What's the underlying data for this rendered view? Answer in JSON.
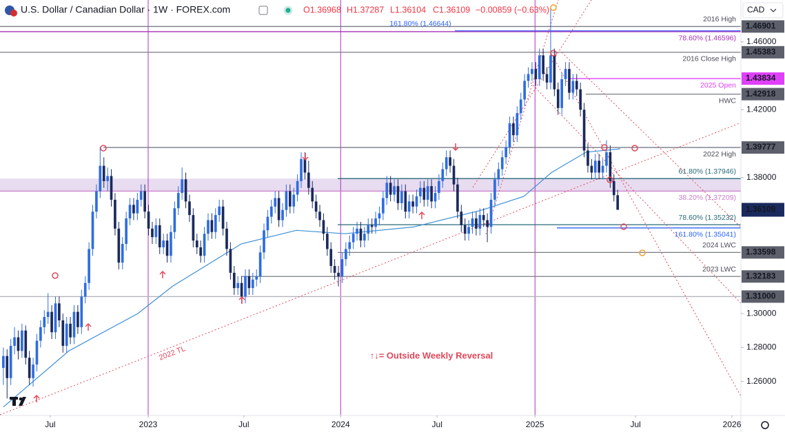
{
  "header": {
    "symbol": "U.S. Dollar / Canadian Dollar · 1W · FOREX.com",
    "open": "O1.36968",
    "high": "H1.37287",
    "low": "L1.36104",
    "close": "C1.36109",
    "change": "−0.00859 (−0.63%)",
    "currency": "CAD"
  },
  "chart_data": {
    "type": "candlestick",
    "open": [
      1.268,
      1.275,
      1.262,
      1.281,
      1.286,
      1.278,
      1.29,
      1.274,
      1.262,
      1.27,
      1.284,
      1.292,
      1.298,
      1.301,
      1.289,
      1.306,
      1.296,
      1.281,
      1.294,
      1.286,
      1.301,
      1.292,
      1.31,
      1.318,
      1.338,
      1.36,
      1.372,
      1.387,
      1.378,
      1.381,
      1.367,
      1.35,
      1.33,
      1.341,
      1.356,
      1.364,
      1.359,
      1.367,
      1.372,
      1.36,
      1.35,
      1.345,
      1.352,
      1.339,
      1.343,
      1.334,
      1.348,
      1.362,
      1.371,
      1.379,
      1.366,
      1.358,
      1.343,
      1.339,
      1.334,
      1.347,
      1.355,
      1.348,
      1.358,
      1.363,
      1.35,
      1.338,
      1.324,
      1.315,
      1.318,
      1.31,
      1.322,
      1.315,
      1.32,
      1.322,
      1.336,
      1.349,
      1.357,
      1.363,
      1.368,
      1.355,
      1.361,
      1.372,
      1.363,
      1.37,
      1.378,
      1.391,
      1.383,
      1.374,
      1.366,
      1.36,
      1.355,
      1.347,
      1.338,
      1.328,
      1.324,
      1.322,
      1.332,
      1.338,
      1.342,
      1.347,
      1.35,
      1.343,
      1.347,
      1.352,
      1.351,
      1.356,
      1.359,
      1.368,
      1.377,
      1.37,
      1.375,
      1.365,
      1.372,
      1.36,
      1.366,
      1.363,
      1.369,
      1.374,
      1.367,
      1.375,
      1.366,
      1.371,
      1.378,
      1.385,
      1.392,
      1.387,
      1.376,
      1.36,
      1.352,
      1.347,
      1.351,
      1.356,
      1.35,
      1.358,
      1.355,
      1.351,
      1.367,
      1.379,
      1.385,
      1.392,
      1.398,
      1.412,
      1.405,
      1.418,
      1.426,
      1.437,
      1.441,
      1.444,
      1.438,
      1.452,
      1.441,
      1.436,
      1.452,
      1.432,
      1.421,
      1.438,
      1.444,
      1.43,
      1.437,
      1.432,
      1.42,
      1.396,
      1.387,
      1.383,
      1.39,
      1.383,
      1.387,
      1.395,
      1.378,
      1.36968
    ],
    "high": [
      1.28,
      1.279,
      1.285,
      1.292,
      1.29,
      1.294,
      1.293,
      1.278,
      1.274,
      1.288,
      1.296,
      1.302,
      1.312,
      1.305,
      1.31,
      1.31,
      1.3,
      1.298,
      1.298,
      1.305,
      1.305,
      1.314,
      1.322,
      1.342,
      1.364,
      1.376,
      1.398,
      1.392,
      1.386,
      1.385,
      1.371,
      1.354,
      1.345,
      1.36,
      1.368,
      1.368,
      1.371,
      1.376,
      1.376,
      1.364,
      1.354,
      1.356,
      1.356,
      1.347,
      1.347,
      1.352,
      1.366,
      1.375,
      1.386,
      1.383,
      1.37,
      1.362,
      1.347,
      1.343,
      1.351,
      1.359,
      1.359,
      1.362,
      1.367,
      1.367,
      1.354,
      1.342,
      1.328,
      1.322,
      1.322,
      1.326,
      1.326,
      1.324,
      1.326,
      1.34,
      1.353,
      1.361,
      1.367,
      1.372,
      1.372,
      1.365,
      1.376,
      1.376,
      1.374,
      1.382,
      1.395,
      1.395,
      1.39,
      1.378,
      1.37,
      1.364,
      1.359,
      1.351,
      1.342,
      1.332,
      1.328,
      1.336,
      1.342,
      1.346,
      1.351,
      1.354,
      1.354,
      1.351,
      1.356,
      1.356,
      1.36,
      1.363,
      1.372,
      1.381,
      1.381,
      1.379,
      1.379,
      1.376,
      1.376,
      1.37,
      1.37,
      1.373,
      1.378,
      1.378,
      1.379,
      1.379,
      1.375,
      1.382,
      1.389,
      1.396,
      1.396,
      1.391,
      1.38,
      1.364,
      1.356,
      1.355,
      1.36,
      1.36,
      1.362,
      1.362,
      1.359,
      1.371,
      1.383,
      1.389,
      1.396,
      1.402,
      1.416,
      1.416,
      1.422,
      1.43,
      1.441,
      1.445,
      1.448,
      1.448,
      1.456,
      1.456,
      1.445,
      1.48,
      1.456,
      1.436,
      1.442,
      1.448,
      1.448,
      1.441,
      1.441,
      1.436,
      1.424,
      1.4,
      1.391,
      1.394,
      1.394,
      1.391,
      1.402,
      1.399,
      1.382,
      1.37287
    ],
    "low": [
      1.258,
      1.25,
      1.258,
      1.276,
      1.273,
      1.274,
      1.27,
      1.258,
      1.257,
      1.266,
      1.28,
      1.288,
      1.294,
      1.285,
      1.285,
      1.292,
      1.277,
      1.277,
      1.282,
      1.282,
      1.288,
      1.288,
      1.306,
      1.314,
      1.334,
      1.356,
      1.368,
      1.374,
      1.372,
      1.363,
      1.346,
      1.326,
      1.326,
      1.337,
      1.352,
      1.355,
      1.355,
      1.363,
      1.356,
      1.346,
      1.341,
      1.341,
      1.335,
      1.335,
      1.33,
      1.33,
      1.344,
      1.358,
      1.367,
      1.362,
      1.354,
      1.339,
      1.335,
      1.33,
      1.33,
      1.343,
      1.344,
      1.344,
      1.354,
      1.346,
      1.334,
      1.32,
      1.311,
      1.311,
      1.306,
      1.306,
      1.311,
      1.311,
      1.316,
      1.318,
      1.332,
      1.345,
      1.353,
      1.359,
      1.351,
      1.351,
      1.357,
      1.359,
      1.359,
      1.366,
      1.374,
      1.379,
      1.37,
      1.362,
      1.356,
      1.351,
      1.343,
      1.334,
      1.324,
      1.32,
      1.316,
      1.318,
      1.328,
      1.334,
      1.338,
      1.343,
      1.339,
      1.339,
      1.343,
      1.347,
      1.347,
      1.352,
      1.355,
      1.364,
      1.366,
      1.366,
      1.361,
      1.361,
      1.356,
      1.356,
      1.359,
      1.359,
      1.365,
      1.363,
      1.363,
      1.362,
      1.362,
      1.367,
      1.374,
      1.381,
      1.383,
      1.372,
      1.356,
      1.348,
      1.343,
      1.343,
      1.347,
      1.346,
      1.346,
      1.351,
      1.342,
      1.347,
      1.363,
      1.375,
      1.381,
      1.388,
      1.394,
      1.401,
      1.401,
      1.414,
      1.422,
      1.433,
      1.437,
      1.434,
      1.434,
      1.437,
      1.432,
      1.432,
      1.428,
      1.417,
      1.417,
      1.434,
      1.426,
      1.426,
      1.428,
      1.416,
      1.392,
      1.383,
      1.379,
      1.379,
      1.379,
      1.379,
      1.383,
      1.374,
      1.366,
      1.36104
    ],
    "close": [
      1.275,
      1.262,
      1.281,
      1.286,
      1.278,
      1.29,
      1.274,
      1.262,
      1.27,
      1.284,
      1.292,
      1.298,
      1.301,
      1.289,
      1.306,
      1.296,
      1.281,
      1.294,
      1.286,
      1.301,
      1.292,
      1.31,
      1.318,
      1.338,
      1.36,
      1.372,
      1.387,
      1.378,
      1.381,
      1.367,
      1.35,
      1.33,
      1.341,
      1.356,
      1.364,
      1.359,
      1.367,
      1.372,
      1.36,
      1.35,
      1.345,
      1.352,
      1.339,
      1.343,
      1.334,
      1.348,
      1.362,
      1.371,
      1.379,
      1.366,
      1.358,
      1.343,
      1.339,
      1.334,
      1.347,
      1.355,
      1.348,
      1.358,
      1.363,
      1.35,
      1.338,
      1.324,
      1.315,
      1.318,
      1.31,
      1.322,
      1.315,
      1.32,
      1.322,
      1.336,
      1.349,
      1.357,
      1.363,
      1.368,
      1.355,
      1.361,
      1.372,
      1.363,
      1.37,
      1.378,
      1.391,
      1.383,
      1.374,
      1.366,
      1.36,
      1.355,
      1.347,
      1.338,
      1.328,
      1.324,
      1.322,
      1.332,
      1.338,
      1.342,
      1.347,
      1.35,
      1.343,
      1.347,
      1.352,
      1.351,
      1.356,
      1.359,
      1.368,
      1.377,
      1.37,
      1.375,
      1.365,
      1.372,
      1.36,
      1.366,
      1.363,
      1.369,
      1.374,
      1.367,
      1.375,
      1.366,
      1.371,
      1.378,
      1.385,
      1.392,
      1.387,
      1.376,
      1.36,
      1.352,
      1.347,
      1.351,
      1.356,
      1.35,
      1.358,
      1.355,
      1.351,
      1.367,
      1.379,
      1.385,
      1.392,
      1.398,
      1.412,
      1.405,
      1.418,
      1.426,
      1.437,
      1.441,
      1.444,
      1.438,
      1.452,
      1.441,
      1.436,
      1.452,
      1.432,
      1.421,
      1.438,
      1.444,
      1.43,
      1.437,
      1.432,
      1.42,
      1.396,
      1.387,
      1.383,
      1.39,
      1.383,
      1.387,
      1.395,
      1.378,
      1.36968,
      1.36109
    ],
    "up_color": "#2e6de0",
    "down_color": "#1b2a5c",
    "ma": {
      "x": [
        0,
        17.6,
        36.1,
        45.4,
        63.9,
        78.7,
        91.7,
        110.2,
        128.7,
        139.8,
        147.2,
        156.5,
        165.7
      ],
      "values": [
        1.245,
        1.278,
        1.3,
        1.316,
        1.341,
        1.349,
        1.347,
        1.351,
        1.361,
        1.369,
        1.383,
        1.395,
        1.397
      ],
      "color": "#3d8fd6"
    },
    "xlim": [
      -0.9,
      198.1
    ],
    "xticks": [
      {
        "value": 12.6,
        "label": "Jul"
      },
      {
        "value": 38.9,
        "label": "2023"
      },
      {
        "value": 64.6,
        "label": "Jul"
      },
      {
        "value": 90.6,
        "label": "2024"
      },
      {
        "value": 116.5,
        "label": "Jul"
      },
      {
        "value": 142.8,
        "label": "2025"
      },
      {
        "value": 169.8,
        "label": "Jul"
      },
      {
        "value": 195.7,
        "label": "2026"
      }
    ],
    "year_line_ticks": [
      1,
      3,
      5
    ],
    "ylim": [
      1.24,
      1.4846
    ],
    "yticks": [
      {
        "value": 1.26,
        "label": "1.26000"
      },
      {
        "value": 1.28,
        "label": "1.28000"
      },
      {
        "value": 1.3,
        "label": "1.30000"
      },
      {
        "value": 1.38,
        "label": "1.38000"
      },
      {
        "value": 1.42,
        "label": "1.42000"
      },
      {
        "value": 1.46,
        "label": "1.46000"
      }
    ],
    "levels": [
      {
        "value": 1.46901,
        "axis_label": "1.46901",
        "text": "2016 High",
        "color": "#787b86",
        "box": "#5d606b"
      },
      {
        "value": 1.46644,
        "text": "161.80% (1.46644)",
        "color": "#2962ff"
      },
      {
        "value": 1.46596,
        "text": "78.60% (1.46596)",
        "color": "#a82fb8"
      },
      {
        "value": 1.45383,
        "axis_label": "1.45383",
        "text": "2016 Close High",
        "color": "#787b86",
        "box": "#5d606b"
      },
      {
        "value": 1.43834,
        "axis_label": "1.43834",
        "text": "2025 Open",
        "color": "#e040fb",
        "box": "#e040fb"
      },
      {
        "value": 1.42918,
        "axis_label": "1.42918",
        "text": "HWC",
        "color": "#787b86",
        "box": "#5d606b"
      },
      {
        "value": 1.39777,
        "axis_label": "1.39777",
        "text": "2022 High",
        "color": "#787b86",
        "box": "#5d606b"
      },
      {
        "value": 1.37946,
        "text": "61.80% (1.37946)",
        "color": "#26697a"
      },
      {
        "value": 1.37209,
        "text": "38.20% (1.37209)",
        "color": "#c77dca"
      },
      {
        "value": 1.35232,
        "text": "78.60% (1.35232)",
        "color": "#26697a"
      },
      {
        "value": 1.35041,
        "text": "161.80% (1.35041)",
        "color": "#2962ff"
      },
      {
        "value": 1.33598,
        "axis_label": "1.33598",
        "text": "2024 LWC",
        "color": "#787b86",
        "box": "#5d606b"
      },
      {
        "value": 1.32183,
        "axis_label": "1.32183",
        "text": "2023 LWC",
        "color": "#787b86",
        "box": "#5d606b"
      },
      {
        "value": 1.31,
        "axis_label": "1.31000",
        "color": "#b2b5be",
        "box": "#5d606b"
      }
    ],
    "band_levels": [
      7,
      8
    ],
    "band_color": "#e8dcf0",
    "annotation": "↑↓= Outside Weekly Reversal",
    "trendline_label": "2022 TL"
  }
}
